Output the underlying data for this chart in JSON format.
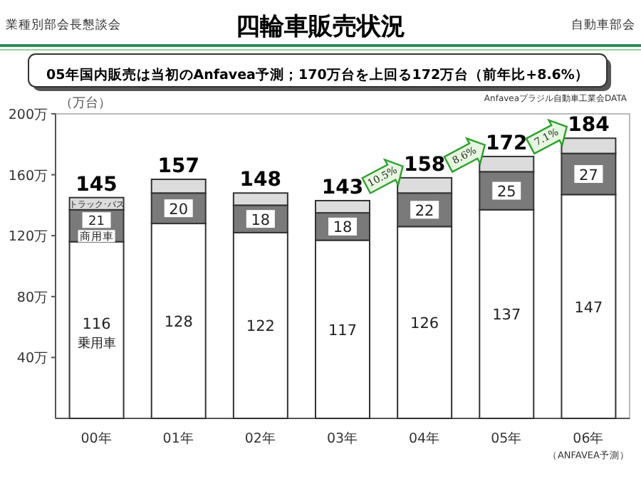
{
  "chart_data": {
    "type": "bar",
    "title": "四輪車販売状況",
    "subtitle": "05年国内販売は当初のAnfavea予測；170万台を上回る172万台（前年比+8.6%）",
    "ylabel": "（万台）",
    "categories": [
      "00年",
      "01年",
      "02年",
      "03年",
      "04年",
      "05年",
      "06年"
    ],
    "stacked": true,
    "legend": false,
    "ylim": [
      0,
      200
    ],
    "yticks": [
      {
        "value": 40,
        "label": "40万"
      },
      {
        "value": 80,
        "label": "80万"
      },
      {
        "value": 120,
        "label": "120万"
      },
      {
        "value": 160,
        "label": "160万"
      },
      {
        "value": 200,
        "label": "200万"
      }
    ],
    "series": [
      {
        "name": "乗用車",
        "color": "#ffffff",
        "values": [
          116,
          128,
          122,
          117,
          126,
          137,
          147
        ],
        "value_labels": [
          "116",
          "128",
          "122",
          "117",
          "126",
          "137",
          "147"
        ]
      },
      {
        "name": "商用車",
        "color": "#7a7a7a",
        "values": [
          21,
          20,
          18,
          18,
          22,
          25,
          27
        ],
        "value_labels": [
          "21",
          "20",
          "18",
          "18",
          "22",
          "25",
          "27"
        ]
      },
      {
        "name": "トラック･バス",
        "color": "#dcdcdc",
        "values": [
          8,
          9,
          8,
          8,
          10,
          10,
          10
        ]
      }
    ],
    "totals": [
      "145",
      "157",
      "148",
      "143",
      "158",
      "172",
      "184"
    ],
    "annotations": [
      "業種別部会長懇談会",
      "自動車部会",
      "Anfaveaブラジル自動車工業会DATA",
      "（ANFAVEA予測）",
      {
        "text": "10.5%",
        "x": "04年",
        "y": 158
      },
      {
        "text": "8.6%",
        "x": "05年",
        "y": 172
      },
      {
        "text": "7.1%",
        "x": "06年",
        "y": 184
      }
    ]
  }
}
